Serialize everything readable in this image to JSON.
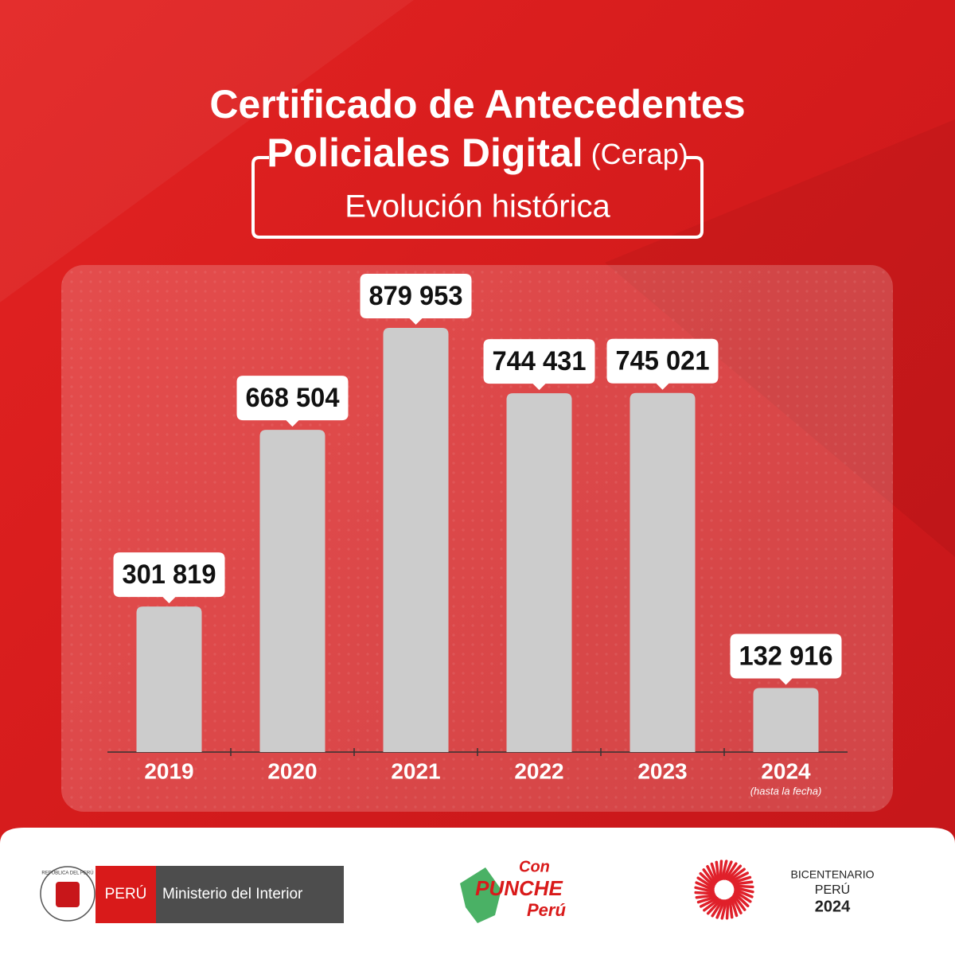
{
  "chart_data": {
    "type": "bar",
    "title_line1": "Certificado de Antecedentes",
    "title_line2": "Policiales Digital",
    "title_note": "(Cerap)",
    "subtitle": "Evolución histórica",
    "categories": [
      "2019",
      "2020",
      "2021",
      "2022",
      "2023",
      "2024"
    ],
    "category_notes": [
      null,
      null,
      null,
      null,
      null,
      "(hasta la fecha)"
    ],
    "values": [
      301819,
      668504,
      879953,
      744431,
      745021,
      132916
    ],
    "value_labels": [
      "301 819",
      "668 504",
      "879 953",
      "744 431",
      "745 021",
      "132 916"
    ],
    "color": "#cccccc"
  },
  "footer": {
    "seal_text": "REPÚBLICA DEL PERÚ",
    "country": "PERÚ",
    "ministry": "Ministerio del Interior",
    "campaign": [
      "Con",
      "PUNCHE",
      "Perú"
    ],
    "bicentenary": [
      "BICENTENARIO",
      "PERÚ",
      "2024"
    ]
  }
}
